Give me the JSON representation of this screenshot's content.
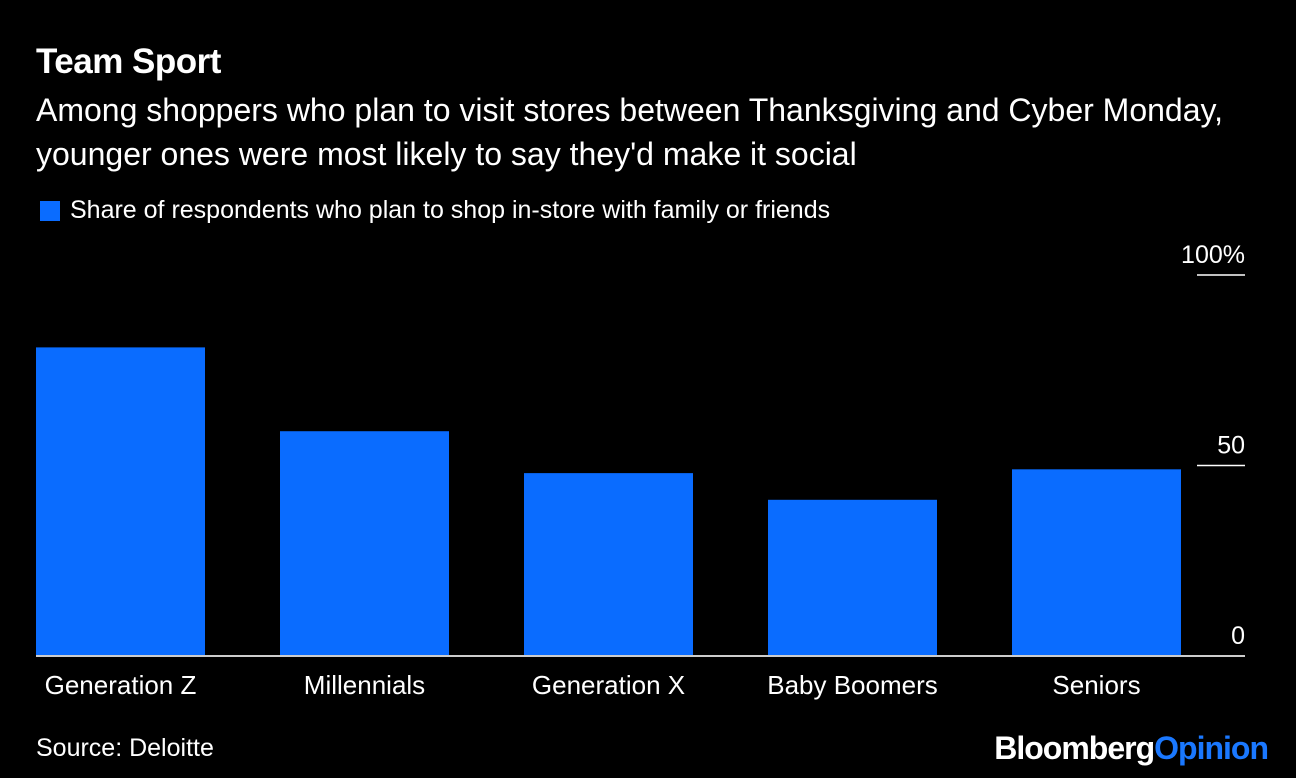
{
  "header": {
    "title": "Team Sport",
    "subtitle": "Among shoppers who plan to visit stores between Thanksgiving and Cyber Monday, younger ones were most likely to say they'd make it social"
  },
  "footer": {
    "source": "Source: Deloitte",
    "logo_brand": "Bloomberg",
    "logo_suffix": "Opinion"
  },
  "colors": {
    "background": "#000000",
    "bar": "#0a6cff",
    "text": "#ffffff",
    "logo_accent": "#1a78ff"
  },
  "chart_data": {
    "type": "bar",
    "title": "Team Sport",
    "subtitle": "Among shoppers who plan to visit stores between Thanksgiving and Cyber Monday, younger ones were most likely to say they'd make it social",
    "categories": [
      "Generation Z",
      "Millennials",
      "Generation X",
      "Baby Boomers",
      "Seniors"
    ],
    "series": [
      {
        "name": "Share of respondents who plan to shop in-store with family or friends",
        "values": [
          81,
          59,
          48,
          41,
          49
        ]
      }
    ],
    "ylim": [
      0,
      100
    ],
    "yticks": [
      0,
      50,
      100
    ],
    "ytick_labels": [
      "0",
      "50",
      "100%"
    ],
    "y_axis_position": "right",
    "grid": false,
    "legend_position": "top-left",
    "xlabel": "",
    "ylabel": ""
  }
}
